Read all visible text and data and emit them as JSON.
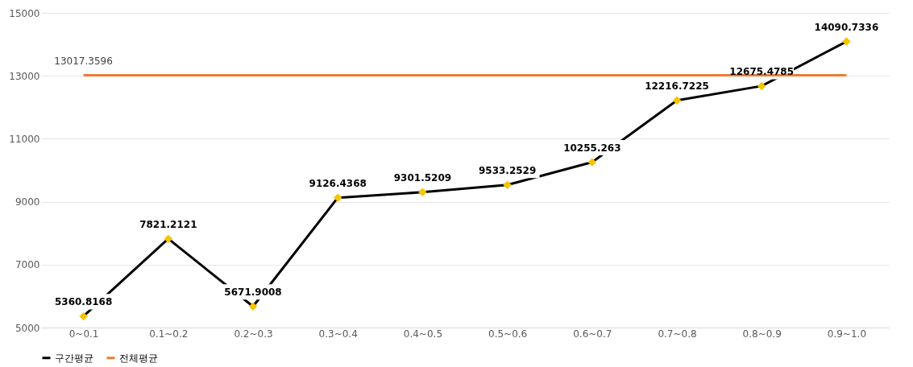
{
  "chart_data": {
    "type": "line",
    "categories": [
      "0~0.1",
      "0.1~0.2",
      "0.2~0.3",
      "0.3~0.4",
      "0.4~0.5",
      "0.5~0.6",
      "0.6~0.7",
      "0.7~0.8",
      "0.8~0.9",
      "0.9~1.0"
    ],
    "series": [
      {
        "name": "구간평균",
        "color": "#000000",
        "marker": "diamond",
        "values": [
          5360.8168,
          7821.2121,
          5671.9008,
          9126.4368,
          9301.5209,
          9533.2529,
          10255.263,
          12216.7225,
          12675.4785,
          14090.7336
        ],
        "value_labels": [
          "5360.8168",
          "7821.2121",
          "5671.9008",
          "9126.4368",
          "9301.5209",
          "9533.2529",
          "10255.263",
          "12216.7225",
          "12675.4785",
          "14090.7336"
        ]
      },
      {
        "name": "전체평균",
        "color": "#ed7d31",
        "marker": "none",
        "values": [
          13017.3596,
          13017.3596,
          13017.3596,
          13017.3596,
          13017.3596,
          13017.3596,
          13017.3596,
          13017.3596,
          13017.3596,
          13017.3596
        ],
        "value_labels": [
          "13017.3596",
          null,
          null,
          null,
          null,
          null,
          null,
          null,
          null,
          null
        ]
      }
    ],
    "ylim": [
      5000,
      15000
    ],
    "yticks": [
      5000,
      7000,
      9000,
      11000,
      13000,
      15000
    ],
    "grid": "y",
    "legend": "bottom",
    "line_style": "solid"
  }
}
